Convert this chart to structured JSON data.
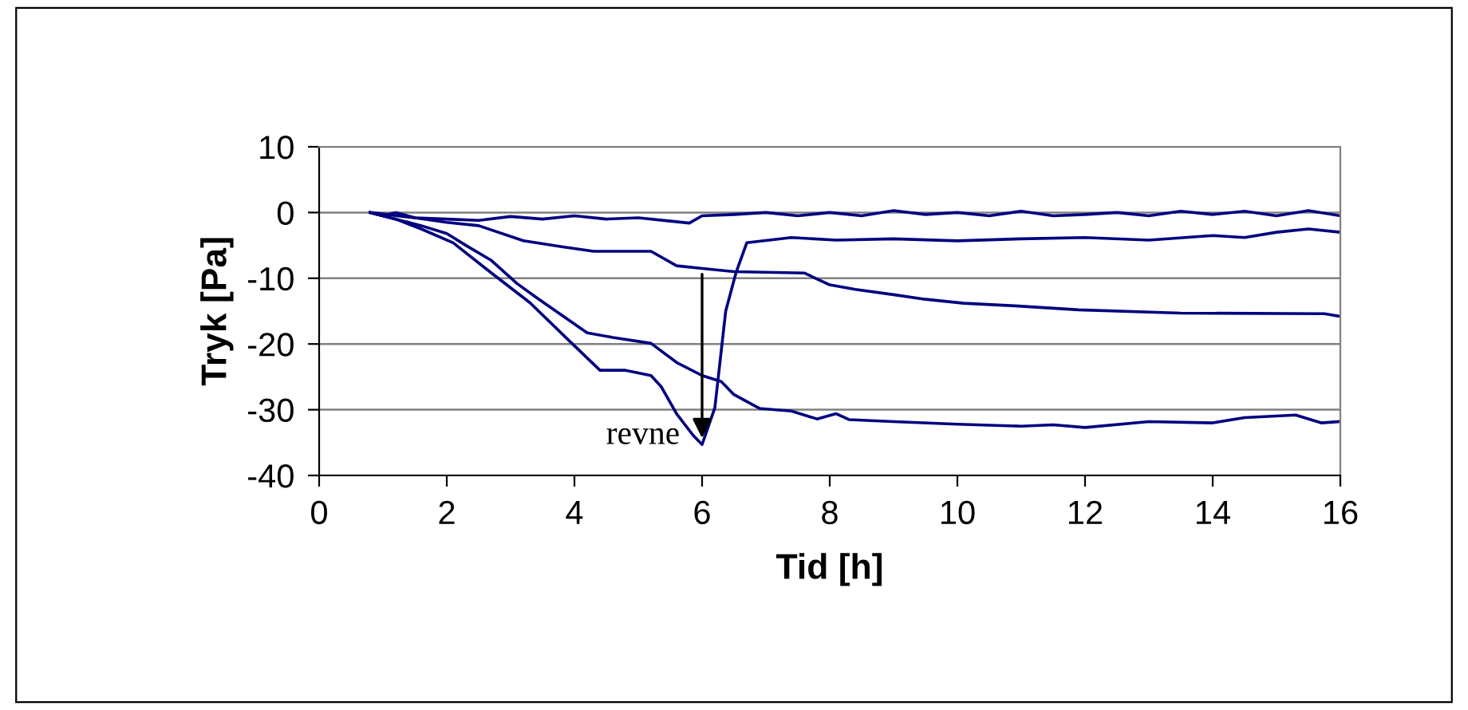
{
  "chart_data": {
    "type": "line",
    "xlabel": "Tid [h]",
    "ylabel": "Tryk [Pa]",
    "xlim": [
      0,
      16
    ],
    "xticks": [
      0,
      2,
      4,
      6,
      8,
      10,
      12,
      14,
      16
    ],
    "ylim": [
      -40,
      10
    ],
    "yticks": [
      -40,
      -30,
      -20,
      -10,
      0,
      10
    ],
    "grid": "y",
    "legend": false,
    "marker": "none",
    "line_style": "solid",
    "annotations": [
      {
        "text": "revne",
        "x": 6,
        "y": -35
      }
    ],
    "series": [
      {
        "color": "#000080",
        "x": [
          0.8,
          1.0,
          1.2,
          1.5,
          2.0,
          2.5,
          3.0,
          3.5,
          4.0,
          4.5,
          5.0,
          5.5,
          5.8,
          6.0,
          6.5,
          7.0,
          7.5,
          8.0,
          8.5,
          9.0,
          9.5,
          10.0,
          10.5,
          11.0,
          11.5,
          12.0,
          12.5,
          13.0,
          13.5,
          14.0,
          14.5,
          15.0,
          15.5,
          16.0
        ],
        "values": [
          0,
          -0.5,
          0,
          -0.8,
          -1.0,
          -1.2,
          -0.6,
          -1.0,
          -0.5,
          -1.0,
          -0.8,
          -1.3,
          -1.6,
          -0.5,
          -0.3,
          0,
          -0.5,
          0,
          -0.5,
          0.3,
          -0.3,
          0,
          -0.5,
          0.2,
          -0.5,
          -0.3,
          0,
          -0.5,
          0.2,
          -0.3,
          0.2,
          -0.5,
          0.3,
          -0.5
        ]
      },
      {
        "color": "#000080",
        "x": [
          0.8,
          1.5,
          2.0,
          2.5,
          3.2,
          3.8,
          4.3,
          5.2,
          5.6,
          6.0,
          6.5,
          7.6,
          8.0,
          8.4,
          9.0,
          9.5,
          10.1,
          10.9,
          11.9,
          13.5,
          15.75,
          16.0
        ],
        "values": [
          0,
          -0.8,
          -1.5,
          -2.0,
          -4.3,
          -5.2,
          -5.9,
          -5.9,
          -8.1,
          -8.5,
          -9.0,
          -9.2,
          -11.0,
          -11.7,
          -12.5,
          -13.2,
          -13.8,
          -14.2,
          -14.8,
          -15.3,
          -15.4,
          -15.8
        ]
      },
      {
        "color": "#000080",
        "x": [
          0.8,
          1.2,
          1.6,
          2.1,
          2.7,
          3.3,
          3.96,
          4.4,
          4.8,
          5.2,
          5.36,
          5.6,
          5.86,
          6.0,
          6.2,
          6.37,
          6.53,
          6.7,
          7.4,
          8.1,
          9.0,
          10.0,
          11.0,
          12.0,
          13.0,
          14.0,
          14.5,
          15.0,
          15.5,
          16.0
        ],
        "values": [
          0,
          -1.0,
          -2.5,
          -4.6,
          -9.2,
          -13.7,
          -19.9,
          -24.0,
          -24.0,
          -24.8,
          -26.5,
          -30.6,
          -33.9,
          -35.3,
          -29.7,
          -15.0,
          -9.2,
          -4.6,
          -3.8,
          -4.2,
          -4.0,
          -4.3,
          -4.0,
          -3.8,
          -4.2,
          -3.5,
          -3.8,
          -3.0,
          -2.5,
          -3.0
        ]
      },
      {
        "color": "#000080",
        "x": [
          0.8,
          1.2,
          1.6,
          2.0,
          2.3,
          2.7,
          3.1,
          3.4,
          4.2,
          4.6,
          5.2,
          5.6,
          6.0,
          6.3,
          6.5,
          6.9,
          7.4,
          7.8,
          8.1,
          8.3,
          9.0,
          10.0,
          11.0,
          11.5,
          12.0,
          13.0,
          14.0,
          14.5,
          15.3,
          15.7,
          16.0
        ],
        "values": [
          0,
          -1.0,
          -2.0,
          -3.2,
          -5.0,
          -7.3,
          -10.8,
          -12.9,
          -18.3,
          -19.0,
          -19.9,
          -22.8,
          -24.8,
          -25.7,
          -27.7,
          -29.8,
          -30.2,
          -31.4,
          -30.6,
          -31.5,
          -31.8,
          -32.2,
          -32.5,
          -32.3,
          -32.7,
          -31.8,
          -32.0,
          -31.2,
          -30.8,
          -32.0,
          -31.8
        ]
      }
    ]
  }
}
